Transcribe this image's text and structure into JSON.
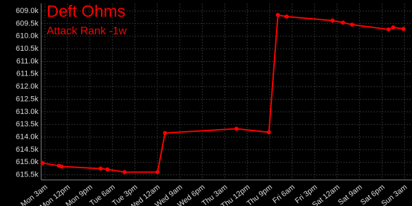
{
  "chart_data": {
    "type": "line",
    "title": "Deft Ohms",
    "subtitle": "Attack Rank -1w",
    "x": [
      2,
      8.6,
      9.7,
      25.3,
      28,
      34.9,
      48.1,
      51.1,
      79.7,
      92.7,
      96.3,
      99.8,
      118.2,
      122.4,
      126,
      140.6,
      142.5,
      146.6
    ],
    "series": [
      {
        "color": "#ff0000",
        "values": [
          615030,
          615140,
          615170,
          615250,
          615280,
          615390,
          615390,
          613840,
          613670,
          613810,
          609160,
          609220,
          609380,
          609460,
          609540,
          609730,
          609650,
          609710
        ]
      }
    ],
    "xlim": [
      1.5,
      150
    ],
    "xticks": [
      {
        "value": 3,
        "label": "Mon 3am"
      },
      {
        "value": 12,
        "label": "Mon 12pm"
      },
      {
        "value": 21,
        "label": "Mon 9pm"
      },
      {
        "value": 30,
        "label": "Tue 6am"
      },
      {
        "value": 39,
        "label": "Tue 3pm"
      },
      {
        "value": 48,
        "label": "Wed 12am"
      },
      {
        "value": 57,
        "label": "Wed 9am"
      },
      {
        "value": 66,
        "label": "Wed 6pm"
      },
      {
        "value": 75,
        "label": "Thu 3am"
      },
      {
        "value": 84,
        "label": "Thu 12pm"
      },
      {
        "value": 93,
        "label": "Thu 9pm"
      },
      {
        "value": 102,
        "label": "Fri 6am"
      },
      {
        "value": 111,
        "label": "Fri 3pm"
      },
      {
        "value": 120,
        "label": "Sat 12am"
      },
      {
        "value": 129,
        "label": "Sat 9am"
      },
      {
        "value": 138,
        "label": "Sat 6pm"
      },
      {
        "value": 147,
        "label": "Sun 3am"
      }
    ],
    "ylim": [
      615700,
      608700
    ],
    "yticks": [
      {
        "value": 609000,
        "label": "609.0k"
      },
      {
        "value": 609500,
        "label": "609.5k"
      },
      {
        "value": 610000,
        "label": "610.0k"
      },
      {
        "value": 610500,
        "label": "610.5k"
      },
      {
        "value": 611000,
        "label": "611.0k"
      },
      {
        "value": 611500,
        "label": "611.5k"
      },
      {
        "value": 612000,
        "label": "612.0k"
      },
      {
        "value": 612500,
        "label": "612.5k"
      },
      {
        "value": 613000,
        "label": "613.0k"
      },
      {
        "value": 613500,
        "label": "613.5k"
      },
      {
        "value": 614000,
        "label": "614.0k"
      },
      {
        "value": 614500,
        "label": "614.5k"
      },
      {
        "value": 615000,
        "label": "615.0k"
      },
      {
        "value": 615500,
        "label": "615.5k"
      }
    ],
    "grid": true
  }
}
